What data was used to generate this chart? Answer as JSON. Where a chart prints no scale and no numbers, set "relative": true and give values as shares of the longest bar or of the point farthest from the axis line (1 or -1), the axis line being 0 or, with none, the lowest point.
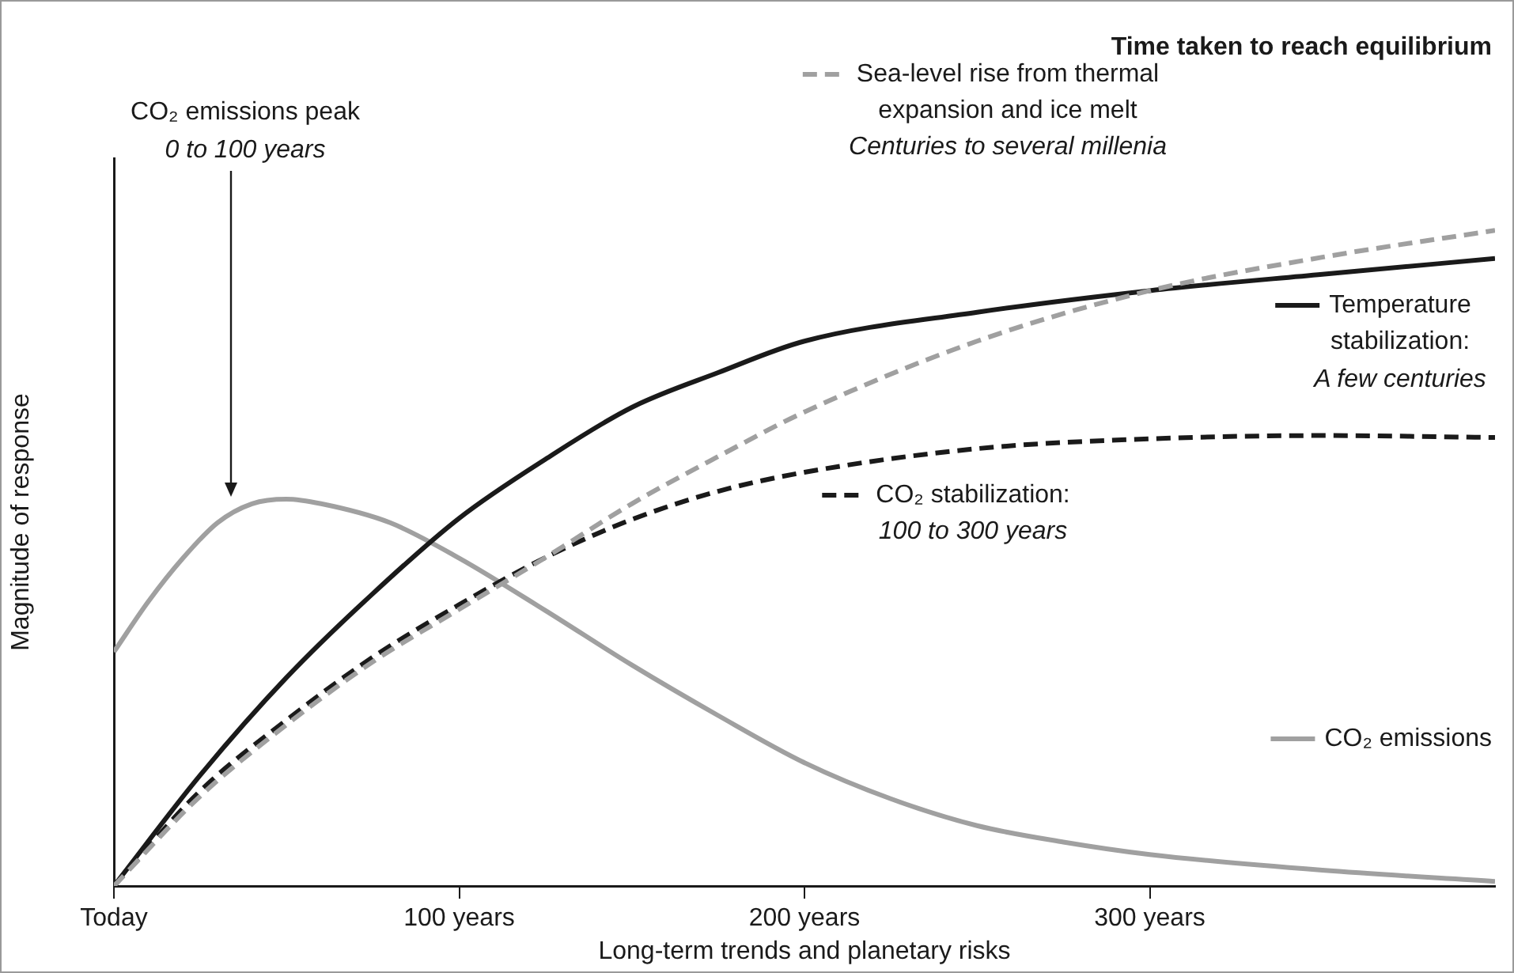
{
  "chart_data": {
    "type": "line",
    "title": "Time taken to reach equilibrium",
    "xlabel": "Long-term trends and planetary risks",
    "ylabel": "Magnitude of response",
    "relative": true,
    "legend": "right",
    "x": [
      0,
      25,
      50,
      75,
      100,
      125,
      150,
      175,
      200,
      250,
      300,
      350,
      400
    ],
    "xlim": [
      0,
      400
    ],
    "xticks": [
      {
        "value": 0,
        "label": "Today"
      },
      {
        "value": 100,
        "label": "100 years"
      },
      {
        "value": 200,
        "label": "200 years"
      },
      {
        "value": 300,
        "label": "300 years"
      }
    ],
    "series": [
      {
        "name": "Sea-level rise from thermal expansion and ice melt",
        "color": "#a0a0a0",
        "line_style": "dashed",
        "values": [
          0,
          0.137,
          0.246,
          0.342,
          0.422,
          0.501,
          0.583,
          0.655,
          0.723,
          0.831,
          0.908,
          0.959,
          1
        ]
      },
      {
        "name": "Temperature stabilization:",
        "color": "#1a1a1a",
        "line_style": "solid",
        "values": [
          0,
          0.169,
          0.318,
          0.446,
          0.561,
          0.651,
          0.73,
          0.783,
          0.831,
          0.875,
          0.908,
          0.933,
          0.957
        ]
      },
      {
        "name": "CO₂ stabilization:",
        "color": "#1a1a1a",
        "line_style": "dashed",
        "values": [
          0,
          0.145,
          0.253,
          0.349,
          0.429,
          0.501,
          0.559,
          0.602,
          0.631,
          0.667,
          0.682,
          0.687,
          0.684
        ]
      },
      {
        "name": "CO₂ emissions",
        "color": "#a0a0a0",
        "line_style": "solid",
        "x": [
          0,
          10,
          20,
          30,
          40,
          50,
          60,
          80,
          100,
          125,
          150,
          175,
          200,
          225,
          250,
          275,
          300,
          350,
          400
        ],
        "values": [
          0.357,
          0.434,
          0.5,
          0.554,
          0.583,
          0.59,
          0.583,
          0.554,
          0.5,
          0.42,
          0.337,
          0.26,
          0.188,
          0.133,
          0.092,
          0.067,
          0.048,
          0.024,
          0.007
        ]
      }
    ],
    "annotations": [
      "CO₂ emissions peak",
      "0 to 100 years",
      "Centuries to several millenia",
      "A few centuries",
      "100 to 300 years"
    ]
  }
}
